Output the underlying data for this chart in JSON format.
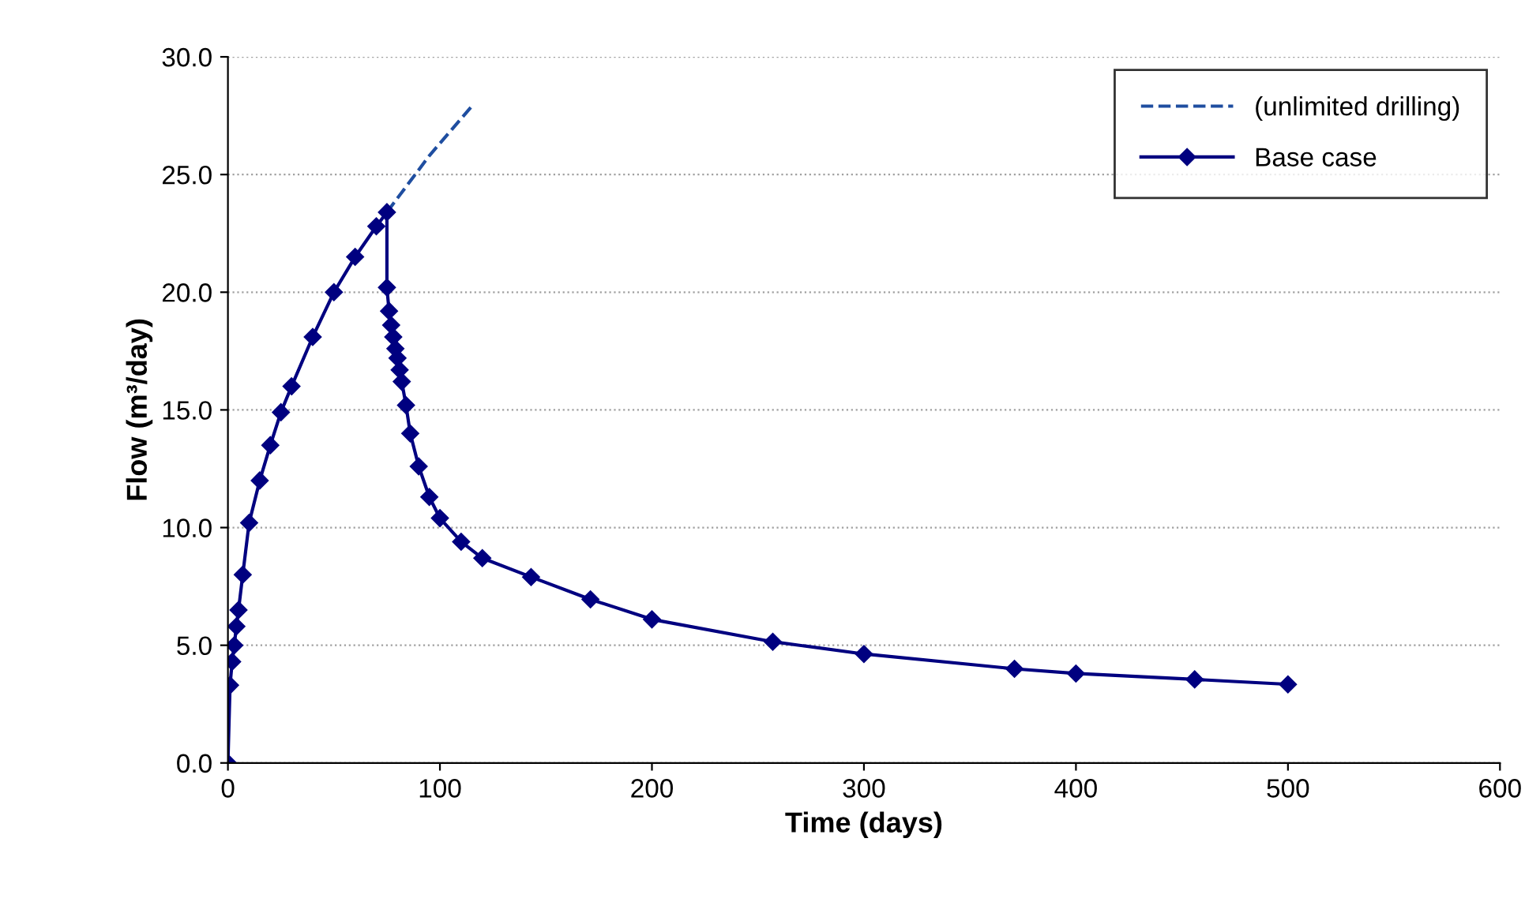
{
  "chart_data": {
    "type": "line",
    "xlabel": "Time (days)",
    "ylabel": "Flow (m³/day)",
    "xlim": [
      0,
      600
    ],
    "xticks": [
      0,
      100,
      200,
      300,
      400,
      500,
      600
    ],
    "ylim": [
      0,
      30
    ],
    "yticks": [
      {
        "value": 0,
        "label": "0.0"
      },
      {
        "value": 5,
        "label": "5.0"
      },
      {
        "value": 10,
        "label": "10.0"
      },
      {
        "value": 15,
        "label": "15.0"
      },
      {
        "value": 20,
        "label": "20.0"
      },
      {
        "value": 25,
        "label": "25.0"
      },
      {
        "value": 30,
        "label": "30.0"
      }
    ],
    "grid": "y",
    "legend": "top right",
    "series": [
      {
        "name": "(unlimited drilling)",
        "color": "#1f4ea0",
        "line_style": "dashed",
        "marker": "none",
        "x": [
          75,
          95,
          116
        ],
        "values": [
          23.4,
          25.8,
          28.0
        ]
      },
      {
        "name": "Base case",
        "color": "#000080",
        "line_style": "solid",
        "marker": "diamond",
        "x": [
          0,
          1,
          2,
          3,
          4,
          5,
          7,
          10,
          15,
          20,
          25,
          30,
          40,
          50,
          60,
          70,
          75,
          75,
          76,
          77,
          78,
          79,
          80,
          81,
          82,
          84,
          86,
          90,
          95,
          100,
          110,
          120,
          143,
          171,
          200,
          257,
          300,
          371,
          400,
          456,
          500
        ],
        "values": [
          0,
          3.3,
          4.3,
          5.0,
          5.8,
          6.5,
          8.0,
          10.2,
          12.0,
          13.5,
          14.9,
          16.0,
          18.1,
          20.0,
          21.5,
          22.8,
          23.4,
          20.2,
          19.2,
          18.6,
          18.1,
          17.6,
          17.2,
          16.7,
          16.2,
          15.2,
          14.0,
          12.6,
          11.3,
          10.4,
          9.4,
          8.7,
          7.9,
          6.95,
          6.1,
          5.15,
          4.63,
          4.0,
          3.8,
          3.55,
          3.34
        ]
      }
    ]
  }
}
